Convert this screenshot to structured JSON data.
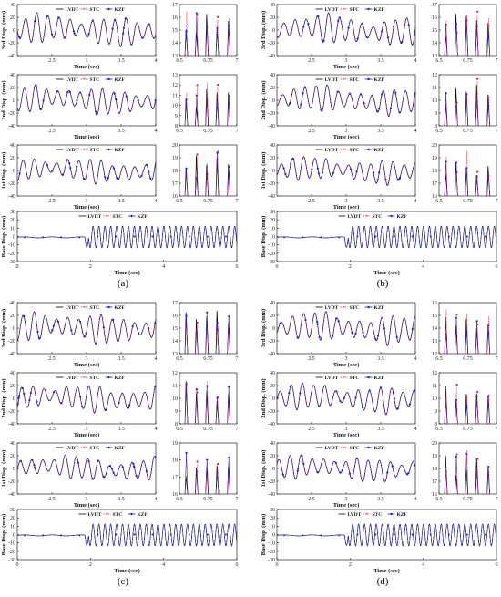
{
  "figure": {
    "panels": [
      {
        "caption": "(a)"
      },
      {
        "caption": "(b)"
      },
      {
        "caption": "(c)"
      },
      {
        "caption": "(d)"
      }
    ],
    "legend": [
      "LVDT",
      "STC",
      "KZF"
    ],
    "colors": {
      "LVDT": "#000000",
      "STC": "#e8192c",
      "KZF": "#1f1fd6"
    }
  },
  "chart_data": [
    {
      "type": "line",
      "title": "",
      "series": [
        {
          "name": "LVDT"
        },
        {
          "name": "STC"
        },
        {
          "name": "KZF"
        }
      ],
      "subplots": [
        {
          "id": "floor3_main",
          "ylabel": "3rd Disp. (mm)",
          "xlabel": "Time (sec)",
          "xlim": [
            2,
            4
          ],
          "ylim": [
            -40,
            40
          ],
          "xticks": [
            "2.5",
            "3",
            "3.5",
            "4"
          ],
          "yticks": [
            "40",
            "20",
            "0",
            "-20",
            "-40"
          ]
        },
        {
          "id": "floor3_zoom",
          "xlim": [
            6.5,
            7
          ],
          "ylim": [
            13,
            17
          ],
          "xticks": [
            "6.5",
            "6.75",
            "7"
          ],
          "yticks": [
            "17",
            "16",
            "15",
            "14",
            "13"
          ]
        },
        {
          "id": "floor2_main",
          "ylabel": "2nd Disp. (mm)",
          "xlabel": "Time (sec)",
          "xlim": [
            2,
            4
          ],
          "ylim": [
            -40,
            40
          ],
          "xticks": [
            "2.5",
            "3",
            "3.5",
            "4"
          ],
          "yticks": [
            "40",
            "20",
            "0",
            "-20",
            "-40"
          ]
        },
        {
          "id": "floor2_zoom",
          "xlim": [
            6.5,
            7
          ],
          "ylim": [
            8,
            13
          ],
          "xticks": [
            "6.5",
            "6.75",
            "7"
          ],
          "yticks": [
            "13",
            "12",
            "11",
            "10",
            "9",
            "8"
          ]
        },
        {
          "id": "floor1_main",
          "ylabel": "1st Disp. (mm)",
          "xlabel": "Time (sec)",
          "xlim": [
            2,
            4
          ],
          "ylim": [
            -40,
            40
          ],
          "xticks": [
            "2.5",
            "3",
            "3.5",
            "4"
          ],
          "yticks": [
            "40",
            "20",
            "0",
            "-20",
            "-40"
          ]
        },
        {
          "id": "floor1_zoom",
          "xlim": [
            6.5,
            7
          ],
          "ylim": [
            16,
            20
          ],
          "xticks": [
            "6.5",
            "6.75",
            "7"
          ],
          "yticks": [
            "20",
            "19",
            "18",
            "17",
            "16"
          ]
        },
        {
          "id": "base",
          "ylabel": "Base Disp. (mm)",
          "xlabel": "Time (sec)",
          "xlim": [
            0,
            6
          ],
          "ylim": [
            -30,
            30
          ],
          "xticks": [
            "0",
            "2",
            "4",
            "6"
          ],
          "yticks": [
            "30",
            "20",
            "10",
            "0",
            "-10",
            "-20",
            "-30"
          ]
        }
      ]
    },
    {
      "type": "line",
      "title": "",
      "series": [
        {
          "name": "LVDT"
        },
        {
          "name": "STC"
        },
        {
          "name": "KZF"
        }
      ],
      "subplots": [
        {
          "id": "floor3_main",
          "ylabel": "3rd Disp. (mm)",
          "xlabel": "Time (sec)",
          "xlim": [
            2,
            4
          ],
          "ylim": [
            -40,
            40
          ],
          "xticks": [
            "2.5",
            "3",
            "3.5",
            "4"
          ],
          "yticks": [
            "40",
            "20",
            "0",
            "-20",
            "-40"
          ]
        },
        {
          "id": "floor3_zoom",
          "xlim": [
            6.5,
            7
          ],
          "ylim": [
            13,
            17
          ],
          "xticks": [
            "6.5",
            "6.75",
            "7"
          ],
          "yticks": [
            "17",
            "16",
            "15",
            "14",
            "13"
          ]
        },
        {
          "id": "floor2_main",
          "ylabel": "2nd Disp. (mm)",
          "xlabel": "Time (sec)",
          "xlim": [
            2,
            4
          ],
          "ylim": [
            -40,
            40
          ],
          "xticks": [
            "2.5",
            "3",
            "3.5",
            "4"
          ],
          "yticks": [
            "40",
            "20",
            "0",
            "-20",
            "-40"
          ]
        },
        {
          "id": "floor2_zoom",
          "xlim": [
            6.5,
            7
          ],
          "ylim": [
            8,
            12
          ],
          "xticks": [
            "6.5",
            "6.75",
            "7"
          ],
          "yticks": [
            "12",
            "11",
            "10",
            "9",
            "8"
          ]
        },
        {
          "id": "floor1_main",
          "ylabel": "1st Disp. (mm)",
          "xlabel": "Time (sec)",
          "xlim": [
            2,
            4
          ],
          "ylim": [
            -40,
            40
          ],
          "xticks": [
            "2.5",
            "3",
            "3.5",
            "4"
          ],
          "yticks": [
            "40",
            "20",
            "0",
            "-20",
            "-40"
          ]
        },
        {
          "id": "floor1_zoom",
          "xlim": [
            6.5,
            7
          ],
          "ylim": [
            16,
            20
          ],
          "xticks": [
            "6.5",
            "6.75",
            "7"
          ],
          "yticks": [
            "20",
            "19",
            "18",
            "17",
            "16"
          ]
        },
        {
          "id": "base",
          "ylabel": "Base Disp. (mm)",
          "xlabel": "Time (sec)",
          "xlim": [
            0,
            6
          ],
          "ylim": [
            -30,
            30
          ],
          "xticks": [
            "0",
            "2",
            "4",
            "6"
          ],
          "yticks": [
            "30",
            "20",
            "10",
            "0",
            "-10",
            "-20",
            "-30"
          ]
        }
      ]
    },
    {
      "type": "line",
      "title": "",
      "series": [
        {
          "name": "LVDT"
        },
        {
          "name": "STC"
        },
        {
          "name": "KZF"
        }
      ],
      "subplots": [
        {
          "id": "floor3_main",
          "ylabel": "3rd Disp. (mm)",
          "xlabel": "Time (sec)",
          "xlim": [
            2,
            4
          ],
          "ylim": [
            -40,
            40
          ],
          "xticks": [
            "2.5",
            "3",
            "3.5",
            "4"
          ],
          "yticks": [
            "40",
            "20",
            "0",
            "-20",
            "-40"
          ]
        },
        {
          "id": "floor3_zoom",
          "xlim": [
            6.5,
            7
          ],
          "ylim": [
            13,
            17
          ],
          "xticks": [
            "6.5",
            "6.75",
            "7"
          ],
          "yticks": [
            "17",
            "16",
            "15",
            "14",
            "13"
          ]
        },
        {
          "id": "floor2_main",
          "ylabel": "2nd Disp. (mm)",
          "xlabel": "Time (sec)",
          "xlim": [
            2,
            4
          ],
          "ylim": [
            -40,
            40
          ],
          "xticks": [
            "2.5",
            "3",
            "3.5",
            "4"
          ],
          "yticks": [
            "40",
            "20",
            "0",
            "-20",
            "-40"
          ]
        },
        {
          "id": "floor2_zoom",
          "xlim": [
            6.5,
            7
          ],
          "ylim": [
            8,
            12
          ],
          "xticks": [
            "6.5",
            "6.75",
            "7"
          ],
          "yticks": [
            "12",
            "11",
            "10",
            "9",
            "8"
          ]
        },
        {
          "id": "floor1_main",
          "ylabel": "1st Disp. (mm)",
          "xlabel": "Time (sec)",
          "xlim": [
            2,
            4
          ],
          "ylim": [
            -40,
            40
          ],
          "xticks": [
            "2.5",
            "3",
            "3.5",
            "4"
          ],
          "yticks": [
            "40",
            "20",
            "0",
            "-20",
            "-40"
          ]
        },
        {
          "id": "floor1_zoom",
          "xlim": [
            6.5,
            7
          ],
          "ylim": [
            16,
            19
          ],
          "xticks": [
            "6.5",
            "6.75",
            "7"
          ],
          "yticks": [
            "19",
            "18",
            "17",
            "16"
          ]
        },
        {
          "id": "base",
          "ylabel": "Base Disp. (mm)",
          "xlabel": "Time (sec)",
          "xlim": [
            0,
            6
          ],
          "ylim": [
            -30,
            30
          ],
          "xticks": [
            "0",
            "2",
            "4",
            "6"
          ],
          "yticks": [
            "30",
            "20",
            "10",
            "0",
            "-10",
            "-20",
            "-30"
          ]
        }
      ]
    },
    {
      "type": "line",
      "title": "",
      "series": [
        {
          "name": "LVDT"
        },
        {
          "name": "STC"
        },
        {
          "name": "KZF"
        }
      ],
      "subplots": [
        {
          "id": "floor3_main",
          "ylabel": "3rd Disp. (mm)",
          "xlabel": "Time (sec)",
          "xlim": [
            2,
            4
          ],
          "ylim": [
            -40,
            40
          ],
          "xticks": [
            "2.5",
            "3",
            "3.5",
            "4"
          ],
          "yticks": [
            "40",
            "20",
            "0",
            "-20",
            "-40"
          ]
        },
        {
          "id": "floor3_zoom",
          "xlim": [
            6.5,
            7
          ],
          "ylim": [
            12,
            16
          ],
          "xticks": [
            "6.5",
            "6.75",
            "7"
          ],
          "yticks": [
            "16",
            "15",
            "14",
            "13",
            "12"
          ]
        },
        {
          "id": "floor2_main",
          "ylabel": "2nd Disp. (mm)",
          "xlabel": "Time (sec)",
          "xlim": [
            2,
            4
          ],
          "ylim": [
            -40,
            40
          ],
          "xticks": [
            "2.5",
            "3",
            "3.5",
            "4"
          ],
          "yticks": [
            "40",
            "20",
            "0",
            "-20",
            "-40"
          ]
        },
        {
          "id": "floor2_zoom",
          "xlim": [
            6.5,
            7
          ],
          "ylim": [
            8,
            12
          ],
          "xticks": [
            "6.5",
            "6.75",
            "7"
          ],
          "yticks": [
            "12",
            "11",
            "10",
            "9",
            "8"
          ]
        },
        {
          "id": "floor1_main",
          "ylabel": "1st Disp. (mm)",
          "xlabel": "Time (sec)",
          "xlim": [
            2,
            4
          ],
          "ylim": [
            -40,
            40
          ],
          "xticks": [
            "2.5",
            "3",
            "3.5",
            "4"
          ],
          "yticks": [
            "40",
            "20",
            "0",
            "-20",
            "-40"
          ]
        },
        {
          "id": "floor1_zoom",
          "xlim": [
            6.5,
            7
          ],
          "ylim": [
            16,
            20
          ],
          "xticks": [
            "6.5",
            "6.75",
            "7"
          ],
          "yticks": [
            "20",
            "19",
            "18",
            "17",
            "16"
          ]
        },
        {
          "id": "base",
          "ylabel": "Base Disp. (mm)",
          "xlabel": "Time (sec)",
          "xlim": [
            0,
            6
          ],
          "ylim": [
            -30,
            30
          ],
          "xticks": [
            "0",
            "2",
            "4",
            "6"
          ],
          "yticks": [
            "30",
            "20",
            "10",
            "0",
            "-10",
            "-20",
            "-30"
          ]
        }
      ]
    }
  ]
}
